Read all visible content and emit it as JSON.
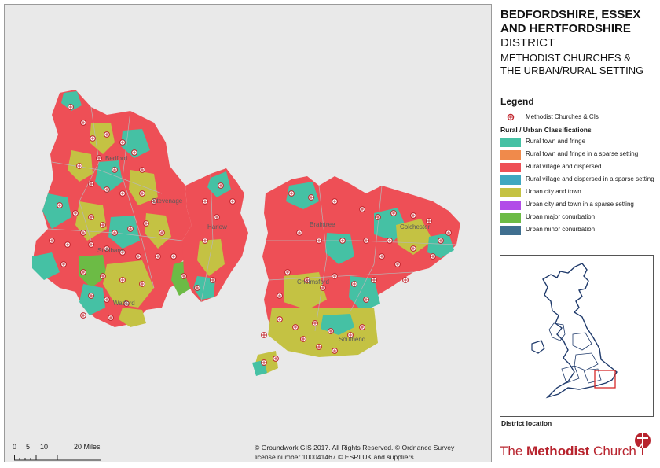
{
  "title": {
    "line1": "BEDFORDSHIRE, ESSEX",
    "line2": "AND HERTFORDSHIRE",
    "line3": "DISTRICT",
    "subtitle1": "METHODIST CHURCHES &",
    "subtitle2": "THE URBAN/RURAL SETTING"
  },
  "legend": {
    "title": "Legend",
    "churches_label": "Methodist Churches & CIs",
    "classification_title": "Rural / Urban Classifications",
    "items": [
      {
        "label": "Rural town and fringe",
        "color": "#45c1a4"
      },
      {
        "label": "Rural town and fringe in a sparse setting",
        "color": "#f08a4b"
      },
      {
        "label": "Rural village and dispersed",
        "color": "#ee4f56"
      },
      {
        "label": "Rural village and dispersed in a sparse setting",
        "color": "#3fa7c0"
      },
      {
        "label": "Urban city and town",
        "color": "#c4c243"
      },
      {
        "label": "Urban city and town in a sparse setting",
        "color": "#b24de8"
      },
      {
        "label": "Urban major conurbation",
        "color": "#6cbb45"
      },
      {
        "label": "Urban minor conurbation",
        "color": "#3f6f8f"
      }
    ]
  },
  "scale": {
    "labels": [
      "0",
      "5",
      "10",
      "20 Miles"
    ]
  },
  "copyright": {
    "line1": "© Groundwork GIS 2017. All Rights Reserved. © Ordnance Survey",
    "line2": "license number 100041467 © ESRI UK and suppliers."
  },
  "inset": {
    "label": "District location"
  },
  "brand": {
    "prefix": "The ",
    "bold": "Methodist",
    "suffix": " Church"
  },
  "map_labels": [
    {
      "text": "Bedford"
    },
    {
      "text": "Stevenage"
    },
    {
      "text": "St Albans"
    },
    {
      "text": "Watford"
    },
    {
      "text": "Braintree"
    },
    {
      "text": "Colchester"
    },
    {
      "text": "Chelmsford"
    },
    {
      "text": "Southend"
    },
    {
      "text": "Harlow"
    }
  ]
}
